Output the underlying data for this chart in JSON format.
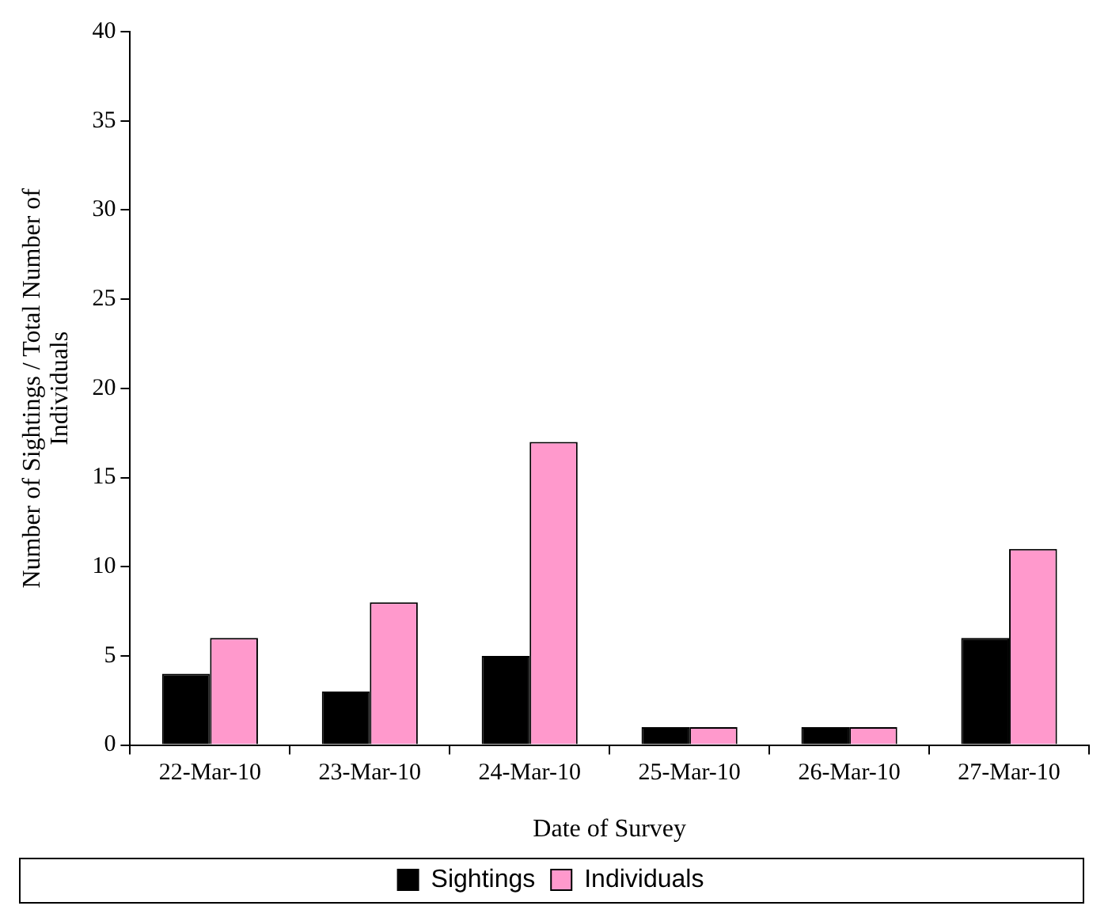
{
  "chart_data": {
    "type": "bar",
    "xlabel": "Date of Survey",
    "ylabel": "Number of Sightings / Total Number of Individuals",
    "categories": [
      "22-Mar-10",
      "23-Mar-10",
      "24-Mar-10",
      "25-Mar-10",
      "26-Mar-10",
      "27-Mar-10"
    ],
    "series": [
      {
        "name": "Sightings",
        "color": "#000000",
        "values": [
          4,
          3,
          5,
          1,
          1,
          6
        ]
      },
      {
        "name": "Individuals",
        "color": "#ff99cc",
        "values": [
          6,
          8,
          17,
          1,
          1,
          11
        ]
      }
    ],
    "ylim": [
      0,
      40
    ],
    "yticks": [
      0,
      5,
      10,
      15,
      20,
      25,
      30,
      35,
      40
    ],
    "grid": false,
    "legend": "bottom"
  }
}
